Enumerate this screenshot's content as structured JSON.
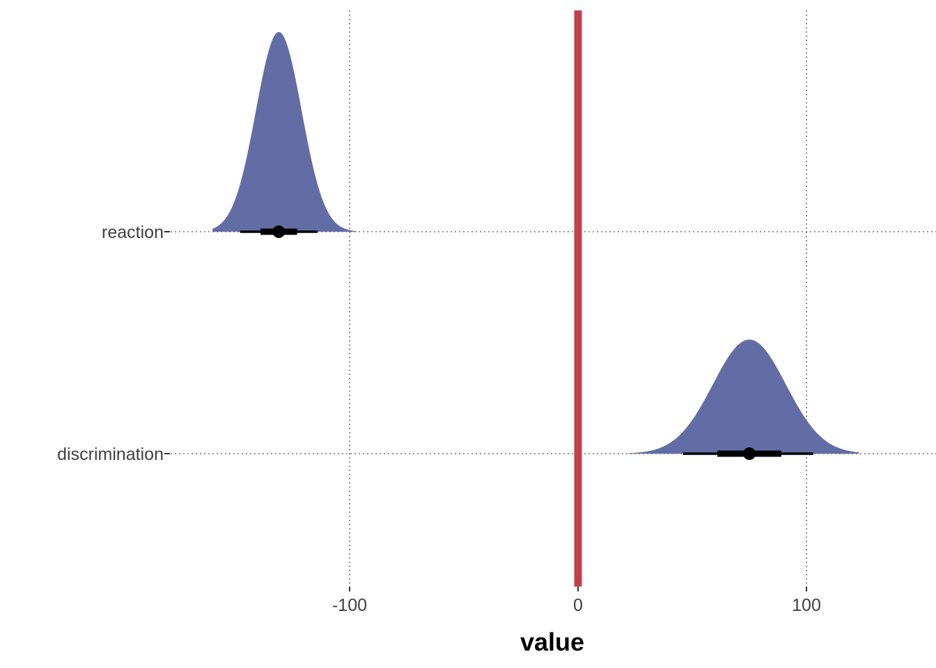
{
  "chart_data": {
    "type": "halfeye",
    "xlabel": "value",
    "ylabel": "",
    "x_ticks": [
      -100,
      0,
      100
    ],
    "x_tick_labels": [
      "-100",
      "0",
      "100"
    ],
    "xlim": [
      -200,
      152
    ],
    "categories": [
      "reaction",
      "discrimination"
    ],
    "grid": "dotted",
    "reference_line": {
      "x": 0,
      "color": "#c0404a"
    },
    "fill_color": "#626da5",
    "series": [
      {
        "category": "reaction",
        "median": -131,
        "sd": 10,
        "interval_66": [
          -139,
          -123
        ],
        "interval_95": [
          -148,
          -114
        ],
        "density_range": [
          -160,
          -97
        ]
      },
      {
        "category": "discrimination",
        "median": 75,
        "sd": 16,
        "interval_66": [
          61,
          89
        ],
        "interval_95": [
          46,
          103
        ],
        "density_range": [
          22,
          123
        ]
      }
    ]
  }
}
